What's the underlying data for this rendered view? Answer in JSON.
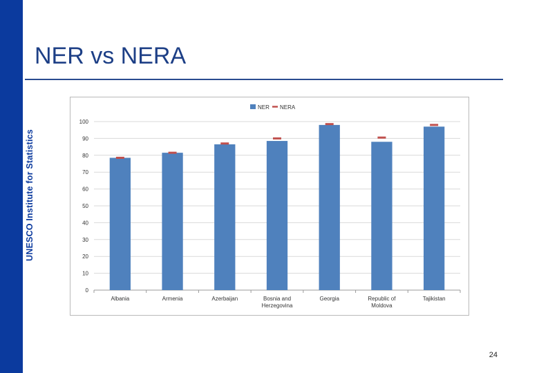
{
  "sidebar": {
    "label": "UNESCO Institute for Statistics"
  },
  "slide": {
    "title": "NER vs NERA",
    "page_number": "24"
  },
  "colors": {
    "sidebar": "#0b3a9e",
    "bar": "#4f81bd",
    "marker": "#c0504d"
  },
  "chart_data": {
    "type": "bar",
    "title": "",
    "xlabel": "",
    "ylabel": "",
    "ylim": [
      0,
      100
    ],
    "yticks": [
      0,
      10,
      20,
      30,
      40,
      50,
      60,
      70,
      80,
      90,
      100
    ],
    "grid": true,
    "legend": "top-center",
    "categories": [
      [
        "Albania"
      ],
      [
        "Armenia"
      ],
      [
        "Azerbaijan"
      ],
      [
        "Bosnia and",
        "Herzegovina"
      ],
      [
        "Georgia"
      ],
      [
        "Republic of",
        "Moldova"
      ],
      [
        "Tajikistan"
      ]
    ],
    "series": [
      {
        "name": "NER",
        "kind": "bar",
        "values": [
          78.5,
          81.5,
          86.5,
          88.5,
          98,
          88,
          97
        ]
      },
      {
        "name": "NERA",
        "kind": "marker",
        "values": [
          78.5,
          81.5,
          87,
          90,
          98.5,
          90.5,
          98
        ]
      }
    ]
  }
}
